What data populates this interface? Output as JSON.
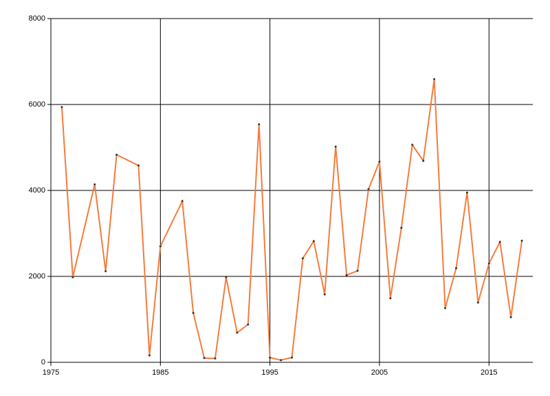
{
  "chart_data": {
    "type": "line",
    "x": [
      1976,
      1977,
      1979,
      1980,
      1981,
      1983,
      1984,
      1985,
      1987,
      1988,
      1989,
      1990,
      1991,
      1992,
      1993,
      1994,
      1995,
      1996,
      1997,
      1998,
      1999,
      2000,
      2001,
      2002,
      2003,
      2004,
      2005,
      2006,
      2007,
      2008,
      2009,
      2010,
      2011,
      2012,
      2013,
      2014,
      2015,
      2016,
      2017,
      2018
    ],
    "series": [
      {
        "color": "#f47b3b",
        "values": [
          5940,
          1980,
          4140,
          2120,
          4830,
          4580,
          160,
          2700,
          3750,
          1150,
          100,
          90,
          1980,
          690,
          880,
          5540,
          110,
          50,
          110,
          2420,
          2820,
          1580,
          5020,
          2030,
          2130,
          4030,
          4670,
          1490,
          3130,
          5060,
          4690,
          6590,
          1260,
          2190,
          3950,
          1390,
          2300,
          2800,
          1050,
          2830
        ]
      }
    ],
    "xlim": [
      1975,
      2019
    ],
    "xticks": [
      1975,
      1985,
      1995,
      2005,
      2015
    ],
    "ylim": [
      0,
      8000
    ],
    "yticks": [
      0,
      2000,
      4000,
      6000,
      8000
    ],
    "grid": true
  }
}
